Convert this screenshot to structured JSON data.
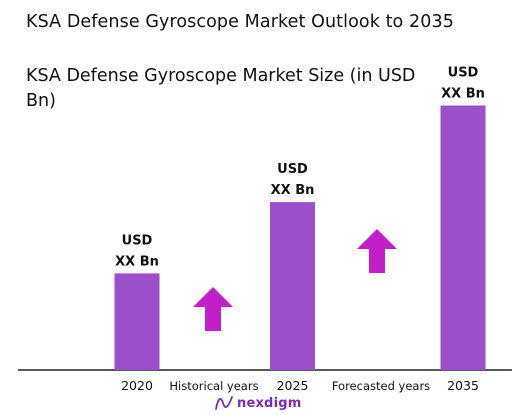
{
  "header": {
    "title": "KSA Defense Gyroscope Market Outlook to 2035"
  },
  "chart_data": {
    "type": "bar",
    "title": "KSA Defense Gyroscope Market Size (in USD Bn)",
    "xlabel": "",
    "ylabel": "",
    "categories": [
      "2020",
      "2025",
      "2035"
    ],
    "values": [
      2.1,
      3.65,
      5.75
    ],
    "value_label_line1": "USD",
    "value_label_line2": "XX Bn",
    "segment_labels": [
      "Historical years",
      "Forecasted years"
    ],
    "ylim": [
      0,
      6
    ],
    "grid": false,
    "colors": {
      "bar": "#9b4fc9",
      "arrow": "#c21fc9",
      "axis": "#222222"
    }
  },
  "branding": {
    "logo_text": "nexdigm",
    "logo_color": "#7b2bb5",
    "logo_icon": "nexdigm-wave-icon"
  }
}
